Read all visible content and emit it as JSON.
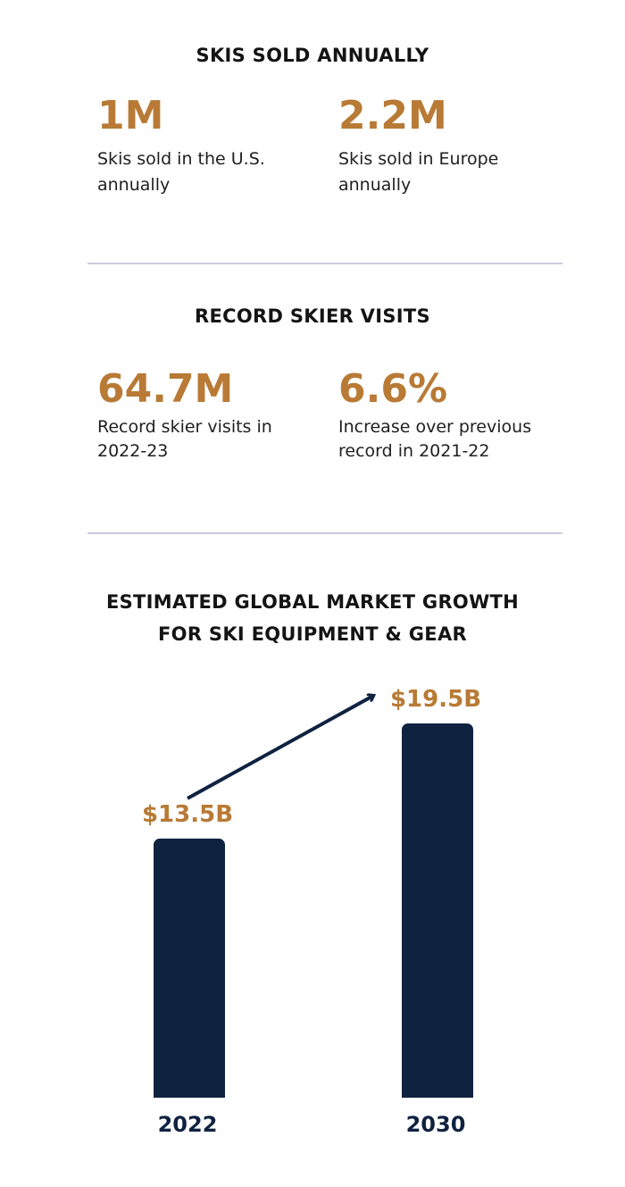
{
  "sections": {
    "skis_sold": {
      "heading": "SKIS SOLD ANNUALLY",
      "stats": [
        {
          "value": "1M",
          "desc_line1": "Skis sold in the U.S.",
          "desc_line2": "annually"
        },
        {
          "value": "2.2M",
          "desc_line1": "Skis sold in Europe",
          "desc_line2": "annually"
        }
      ]
    },
    "skier_visits": {
      "heading": "RECORD SKIER VISITS",
      "stats": [
        {
          "value": "64.7M",
          "desc_line1": "Record skier visits in",
          "desc_line2": "2022-23"
        },
        {
          "value": "6.6%",
          "desc_line1": "Increase over previous",
          "desc_line2": "record in 2021-22"
        }
      ]
    }
  },
  "colors": {
    "accent": "#b87a35",
    "bar": "#0f2240",
    "divider": "#cdcadf",
    "text": "#141414"
  },
  "chart_data": {
    "type": "bar",
    "title_line1": "ESTIMATED GLOBAL MARKET GROWTH",
    "title_line2": "FOR SKI EQUIPMENT & GEAR",
    "categories": [
      "2022",
      "2030"
    ],
    "values": [
      13.5,
      19.5
    ],
    "value_labels": [
      "$13.5B",
      "$19.5B"
    ],
    "xlabel": "",
    "ylabel": "",
    "ylim": [
      0,
      19.5
    ],
    "grid": false,
    "legend": "none",
    "annotation": "arrow-from-first-to-last-label"
  }
}
